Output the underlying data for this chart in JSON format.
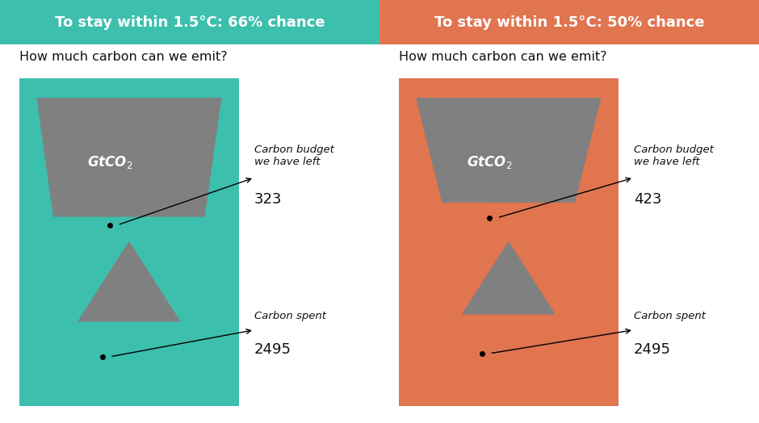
{
  "panels": [
    {
      "title": "To stay within 1.5°C: 66% chance",
      "subtitle": "How much carbon can we emit?",
      "header_color": "#3dbfad",
      "bg_color": "#daf2ef",
      "accent_color": "#3dbfad",
      "gray_color": "#808080",
      "budget_label": "Carbon budget\nwe have left",
      "budget_value": "323",
      "spent_label": "Carbon spent",
      "spent_value": "2495",
      "gtco2_label": "GtCO₂",
      "upper_gray_ratio": 0.82,
      "lower_gray_ratio": 0.55
    },
    {
      "title": "To stay within 1.5°C: 50% chance",
      "subtitle": "How much carbon can we emit?",
      "header_color": "#e07550",
      "bg_color": "#fae8e0",
      "accent_color": "#e07550",
      "gray_color": "#808080",
      "budget_label": "Carbon budget\nwe have left",
      "budget_value": "423",
      "spent_label": "Carbon spent",
      "spent_value": "2495",
      "gtco2_label": "GtCO₂",
      "upper_gray_ratio": 0.72,
      "lower_gray_ratio": 0.5
    }
  ]
}
